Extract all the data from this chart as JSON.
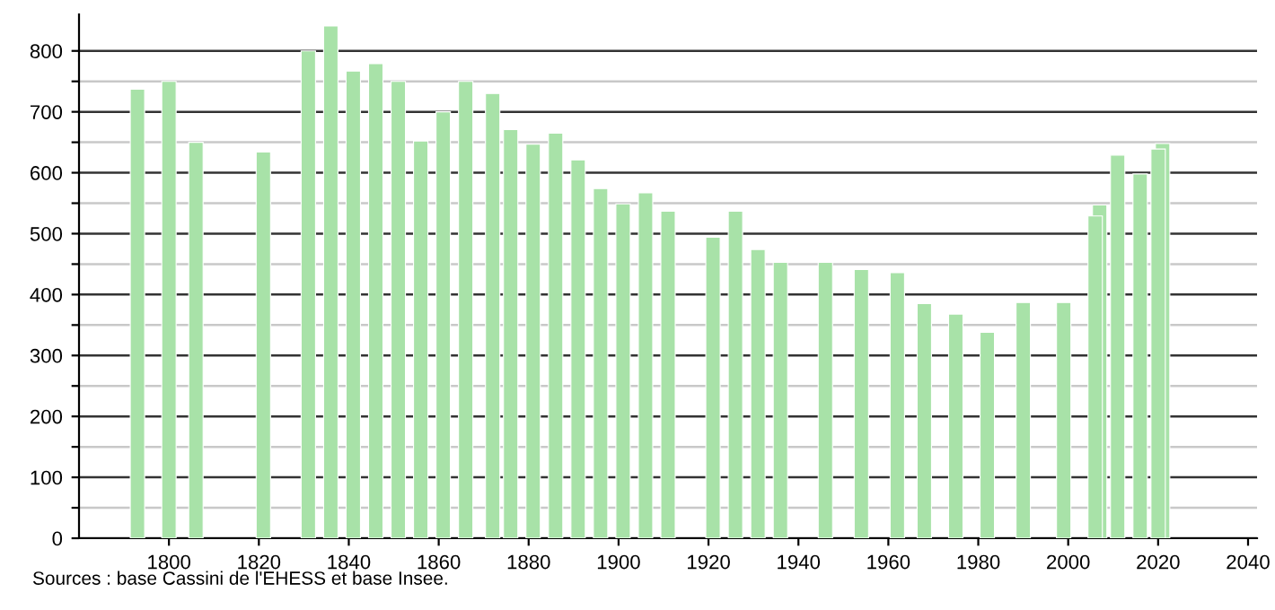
{
  "chart_data": {
    "type": "bar",
    "x": [
      1793,
      1800,
      1806,
      1821,
      1831,
      1836,
      1841,
      1846,
      1851,
      1856,
      1861,
      1866,
      1872,
      1876,
      1881,
      1886,
      1891,
      1896,
      1901,
      1906,
      1911,
      1921,
      1926,
      1931,
      1936,
      1946,
      1954,
      1962,
      1968,
      1975,
      1982,
      1990,
      1999,
      2006,
      2007,
      2011,
      2016,
      2020,
      2021
    ],
    "values": [
      737,
      750,
      650,
      634,
      800,
      841,
      767,
      779,
      750,
      652,
      700,
      750,
      730,
      671,
      647,
      665,
      621,
      574,
      549,
      567,
      537,
      494,
      537,
      474,
      453,
      453,
      441,
      436,
      385,
      368,
      338,
      387,
      387,
      529,
      547,
      629,
      598,
      639,
      648
    ],
    "color": "#a8e2a8",
    "xlim": [
      1780,
      2042
    ],
    "xticks": [
      1800,
      1820,
      1840,
      1860,
      1880,
      1900,
      1920,
      1940,
      1960,
      1980,
      2000,
      2020,
      2040
    ],
    "ylim": [
      0,
      860
    ],
    "yticks": [
      0,
      {
        "value": 50,
        "label": null
      },
      100,
      {
        "value": 150,
        "label": null
      },
      200,
      {
        "value": 250,
        "label": null
      },
      300,
      {
        "value": 350,
        "label": null
      },
      400,
      {
        "value": 450,
        "label": null
      },
      500,
      {
        "value": 550,
        "label": null
      },
      600,
      {
        "value": 650,
        "label": null
      },
      700,
      {
        "value": 750,
        "label": null
      },
      800
    ],
    "grid": "y",
    "annotations": [
      "Sources : base Cassini de l'EHESS et base Insee."
    ]
  }
}
